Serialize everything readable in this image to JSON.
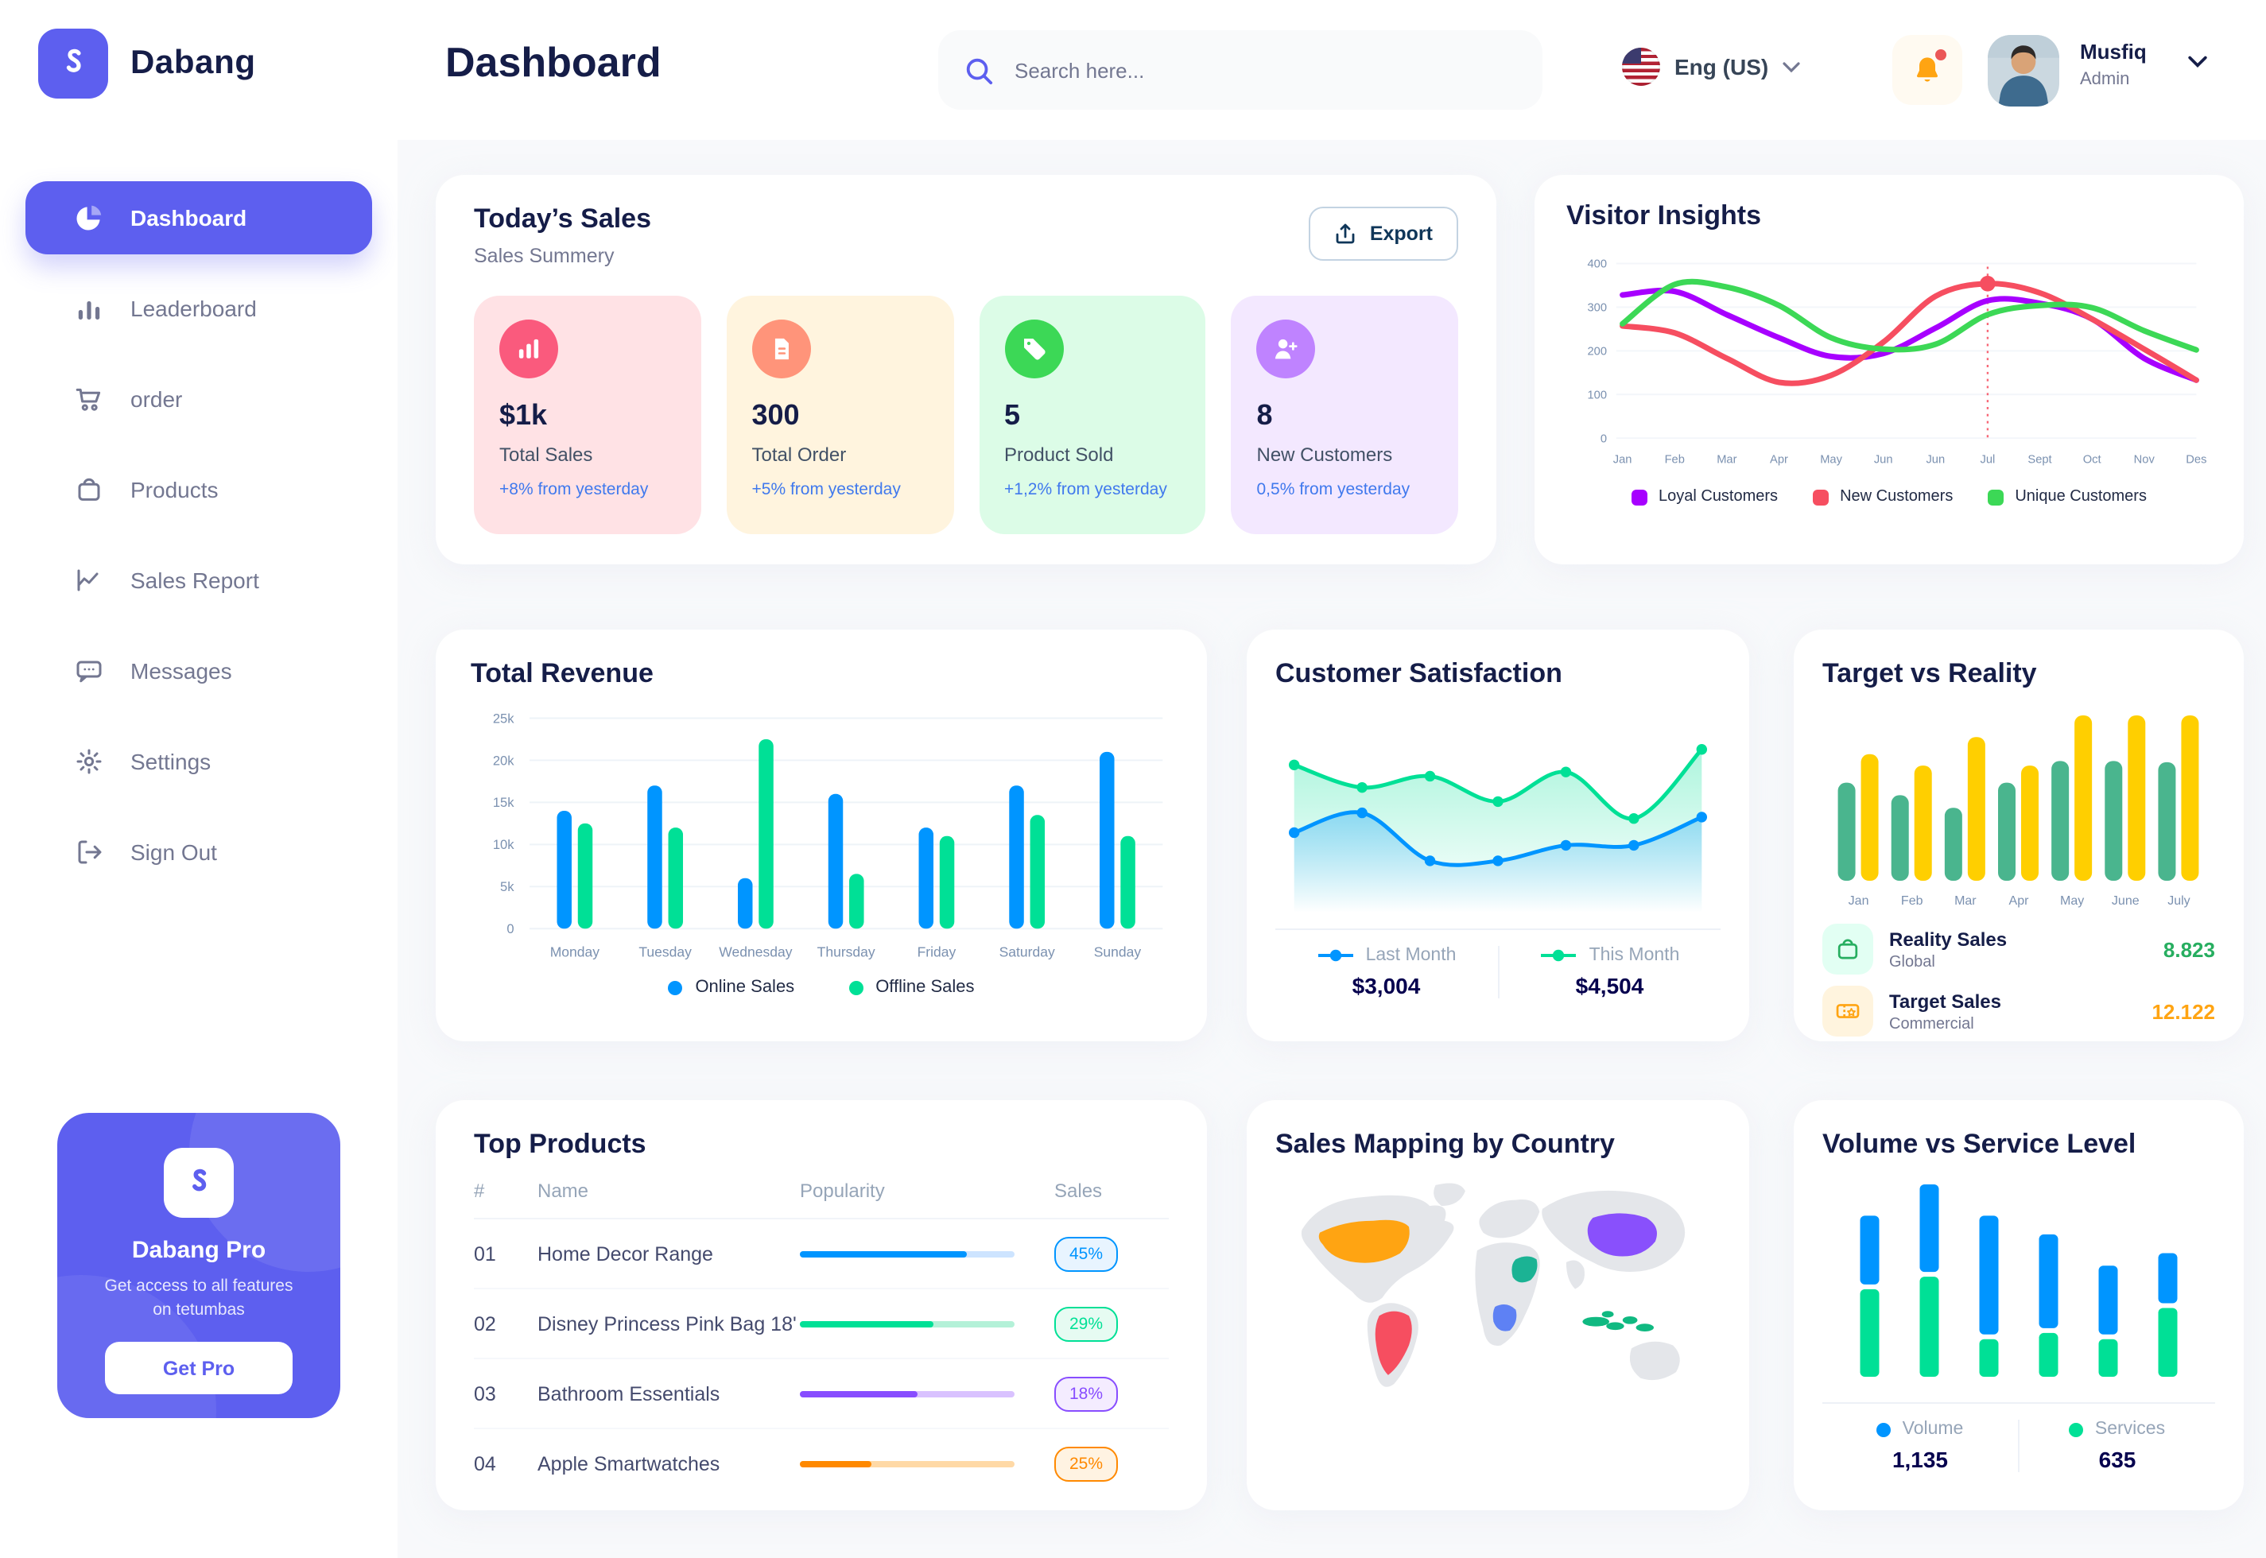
{
  "sidebar": {
    "brand": "Dabang",
    "items": [
      {
        "label": "Dashboard",
        "icon": "pie",
        "active": true
      },
      {
        "label": "Leaderboard",
        "icon": "bars",
        "active": false
      },
      {
        "label": "order",
        "icon": "cart",
        "active": false
      },
      {
        "label": "Products",
        "icon": "bag",
        "active": false
      },
      {
        "label": "Sales Report",
        "icon": "chartline",
        "active": false
      },
      {
        "label": "Messages",
        "icon": "message",
        "active": false
      },
      {
        "label": "Settings",
        "icon": "gear",
        "active": false
      },
      {
        "label": "Sign Out",
        "icon": "signout",
        "active": false
      }
    ],
    "pro": {
      "title": "Dabang Pro",
      "desc": "Get access to all features on tetumbas",
      "button": "Get Pro"
    }
  },
  "header": {
    "page_title": "Dashboard",
    "search_placeholder": "Search here...",
    "language": "Eng (US)",
    "user_name": "Musfiq",
    "user_role": "Admin"
  },
  "today_sales": {
    "title": "Today’s Sales",
    "subtitle": "Sales Summery",
    "export_label": "Export",
    "cards": [
      {
        "value": "$1k",
        "label": "Total Sales",
        "delta": "+8% from yesterday",
        "bg": "#FFE2E5",
        "icon_bg": "#FA5A7D",
        "icon": "chartbars"
      },
      {
        "value": "300",
        "label": "Total Order",
        "delta": "+5% from yesterday",
        "bg": "#FFF4DE",
        "icon_bg": "#FF947A",
        "icon": "receipt"
      },
      {
        "value": "5",
        "label": "Product Sold",
        "delta": "+1,2% from yesterday",
        "bg": "#DCFCE7",
        "icon_bg": "#3CD856",
        "icon": "tag"
      },
      {
        "value": "8",
        "label": "New Customers",
        "delta": "0,5% from yesterday",
        "bg": "#F3E8FF",
        "icon_bg": "#BF83FF",
        "icon": "userplus"
      }
    ]
  },
  "visitor_insights": {
    "title": "Visitor Insights",
    "chart_data": {
      "type": "line",
      "categories": [
        "Jan",
        "Feb",
        "Mar",
        "Apr",
        "May",
        "Jun",
        "Jun",
        "Jul",
        "Sept",
        "Oct",
        "Nov",
        "Des"
      ],
      "yticks": [
        0,
        100,
        200,
        300,
        400
      ],
      "ylim": [
        0,
        400
      ],
      "series": [
        {
          "name": "Loyal Customers",
          "color": "#A700FF",
          "values": [
            328,
            336,
            283,
            230,
            187,
            194,
            252,
            315,
            309,
            273,
            183,
            133
          ]
        },
        {
          "name": "New Customers",
          "color": "#F64E60",
          "values": [
            257,
            241,
            183,
            128,
            144,
            220,
            325,
            354,
            333,
            273,
            204,
            133
          ]
        },
        {
          "name": "Unique Customers",
          "color": "#3CD856",
          "values": [
            262,
            352,
            346,
            304,
            230,
            204,
            215,
            283,
            304,
            299,
            246,
            202
          ]
        }
      ],
      "highlight": {
        "series_index": 1,
        "point_index": 7
      }
    }
  },
  "total_revenue": {
    "title": "Total Revenue",
    "chart_data": {
      "type": "bar",
      "categories": [
        "Monday",
        "Tuesday",
        "Wednesday",
        "Thursday",
        "Friday",
        "Saturday",
        "Sunday"
      ],
      "ytick_labels": [
        "0",
        "5k",
        "10k",
        "15k",
        "20k",
        "25k"
      ],
      "ylim": [
        0,
        25
      ],
      "series": [
        {
          "name": "Online Sales",
          "color": "#0095FF",
          "values": [
            14,
            17,
            6,
            16,
            12,
            17,
            21
          ]
        },
        {
          "name": "Offline Sales",
          "color": "#00E096",
          "values": [
            12.5,
            12,
            22.5,
            6.5,
            11,
            13.5,
            11
          ]
        }
      ]
    }
  },
  "customer_satisfaction": {
    "title": "Customer Satisfaction",
    "chart_data": {
      "type": "area",
      "ylim": [
        0,
        100
      ],
      "series": [
        {
          "name": "This Month",
          "color": "#00E096",
          "total": "$4,504",
          "values": [
            87,
            71,
            79,
            61,
            82,
            49,
            98
          ]
        },
        {
          "name": "Last Month",
          "color": "#0095FF",
          "total": "$3,004",
          "values": [
            39,
            53,
            19,
            19,
            30,
            30,
            50
          ]
        }
      ],
      "legend_order": [
        "Last Month",
        "This Month"
      ]
    }
  },
  "target_vs_reality": {
    "title": "Target vs Reality",
    "chart_data": {
      "type": "bar",
      "categories": [
        "Jan",
        "Feb",
        "Mar",
        "Apr",
        "May",
        "June",
        "July"
      ],
      "series": [
        {
          "name": "Reality Sales",
          "subtitle": "Global",
          "color": "#4AB58E",
          "value_label": "8.823",
          "value_color": "#27AE60",
          "icon_bg": "#E2FFF3",
          "icon": "bag",
          "values": [
            8.6,
            7.5,
            6.4,
            8.6,
            10.5,
            10.5,
            10.4
          ]
        },
        {
          "name": "Target Sales",
          "subtitle": "Commercial",
          "color": "#FFCF00",
          "value_label": "12.122",
          "value_color": "#FFA412",
          "icon_bg": "#FFF4DE",
          "icon": "ticket",
          "values": [
            11.1,
            10.1,
            12.6,
            10.1,
            14.5,
            14.5,
            14.5
          ]
        }
      ]
    }
  },
  "top_products": {
    "title": "Top Products",
    "headers": [
      "#",
      "Name",
      "Popularity",
      "Sales"
    ],
    "rows": [
      {
        "num": "01",
        "name": "Home Decor Range",
        "bar_pct": 78,
        "color": "#0095FF",
        "track": "#CDE4FF",
        "sales": "45%",
        "badge_bg": "#E8F4FF"
      },
      {
        "num": "02",
        "name": "Disney Princess Pink Bag 18'",
        "bar_pct": 62,
        "color": "#00E096",
        "track": "#B4F1D8",
        "sales": "29%",
        "badge_bg": "#E6FBF2"
      },
      {
        "num": "03",
        "name": "Bathroom Essentials",
        "bar_pct": 55,
        "color": "#884DFF",
        "track": "#D9C2FF",
        "sales": "18%",
        "badge_bg": "#F4ECFF"
      },
      {
        "num": "04",
        "name": "Apple Smartwatches",
        "bar_pct": 33,
        "color": "#FF8900",
        "track": "#FFD9A6",
        "sales": "25%",
        "badge_bg": "#FFF3E2"
      }
    ]
  },
  "sales_map": {
    "title": "Sales Mapping by Country",
    "countries": [
      {
        "name": "United States",
        "color": "#FFA412"
      },
      {
        "name": "Brazil",
        "color": "#F64E60"
      },
      {
        "name": "Saudi Arabia",
        "color": "#1BB394"
      },
      {
        "name": "DR Congo",
        "color": "#5E81F4"
      },
      {
        "name": "China",
        "color": "#8950FC"
      },
      {
        "name": "Indonesia",
        "color": "#10B981"
      }
    ]
  },
  "volume_service": {
    "title": "Volume vs Service Level",
    "chart_data": {
      "type": "stacked_bar",
      "series": [
        {
          "name": "Volume",
          "color": "#0095FF",
          "total": "1,135",
          "values": [
            11,
            14,
            19,
            15,
            11,
            8
          ]
        },
        {
          "name": "Services",
          "color": "#00E096",
          "total": "635",
          "values": [
            14,
            16,
            6,
            7,
            6,
            11
          ]
        }
      ]
    }
  }
}
